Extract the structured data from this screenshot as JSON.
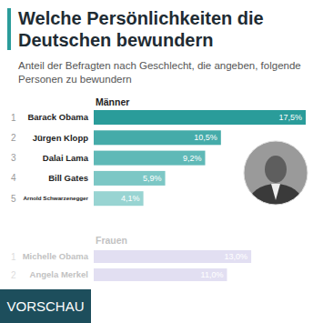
{
  "chart_data": [
    {
      "type": "bar",
      "orientation": "horizontal",
      "title": "Welche Persönlichkeiten die Deutschen bewundern",
      "subtitle": "Anteil der Befragten nach Geschlecht, die angeben, folgende Personen zu bewundern",
      "categories": [
        "Barack Obama",
        "Jürgen Klopp",
        "Dalai Lama",
        "Bill Gates",
        "Arnold Schwarzenegger"
      ],
      "ranks": [
        1,
        2,
        3,
        4,
        5
      ],
      "series": [
        {
          "name": "Männer",
          "values": [
            17.5,
            10.5,
            9.2,
            5.9,
            4.1
          ],
          "value_labels": [
            "17,5%",
            "10,5%",
            "9,2%",
            "5,9%",
            "4,1%"
          ],
          "colors": [
            "#2a9c9a",
            "#45aba9",
            "#5fb9b7",
            "#7cc7c5",
            "#98d4d2"
          ]
        }
      ],
      "xlim": [
        0,
        17.5
      ],
      "tick_labels": false,
      "data_labels": true
    },
    {
      "type": "bar",
      "orientation": "horizontal",
      "categories": [
        "Michelle Obama",
        "Angela Merkel"
      ],
      "ranks": [
        1,
        2
      ],
      "series": [
        {
          "name": "Frauen",
          "values": [
            13.0,
            11.0
          ],
          "value_labels": [
            "13,0%",
            "11,0%"
          ],
          "color": "#b9b1e0"
        }
      ],
      "xlim": [
        0,
        17.5
      ],
      "tick_labels": false,
      "data_labels": true
    }
  ],
  "badge": "VORSCHAU"
}
